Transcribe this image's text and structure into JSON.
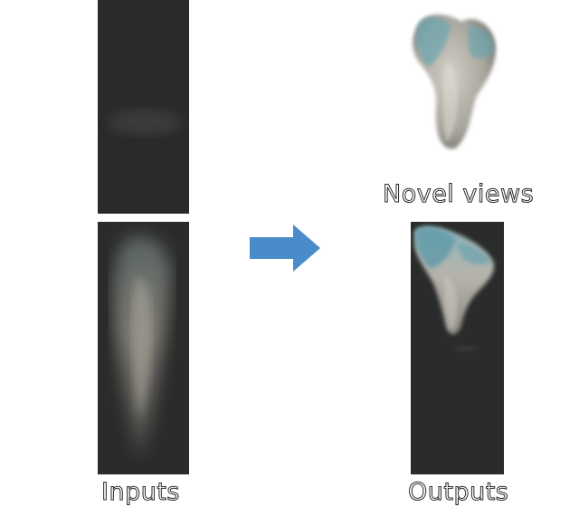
{
  "labels": {
    "inputs": "Inputs",
    "outputs": "Outputs",
    "novel_views": "Novel views"
  },
  "colors": {
    "panel_background": "#2b2b2b",
    "arrow": "#4a8cc9",
    "object_body": "#b9b6ae",
    "object_tint": "#6fa7b0"
  },
  "icons": {
    "arrow": "right-arrow-icon"
  }
}
